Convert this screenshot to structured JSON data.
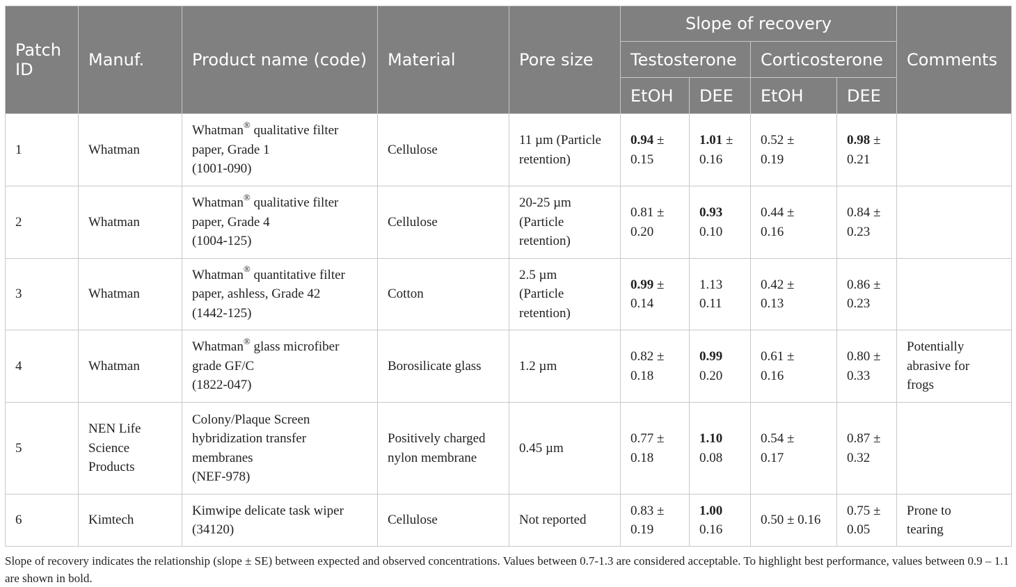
{
  "header": {
    "patch_id": [
      "Patch",
      "ID"
    ],
    "manuf": "Manuf.",
    "product": "Product name (code)",
    "material": "Material",
    "pore_size": "Pore size",
    "slope": "Slope of recovery",
    "testosterone": "Testosterone",
    "corticosterone": "Corticosterone",
    "etoh": "EtOH",
    "dee": "DEE",
    "comments": "Comments"
  },
  "rows": [
    {
      "id": "1",
      "manuf": [
        "Whatman"
      ],
      "product": {
        "brand": "Whatman",
        "sup": "®",
        "rest": " qualitative filter",
        "lines": [
          "paper, Grade 1",
          "(1001-090)"
        ]
      },
      "material": [
        "Cellulose"
      ],
      "pore": [
        "11 µm (Particle",
        "retention)"
      ],
      "t_etoh": {
        "v": "0.94",
        "pm": " ±",
        "se": "0.15",
        "bold": true
      },
      "t_dee": {
        "v": "1.01",
        "pm": " ±",
        "se": "0.16",
        "bold": true
      },
      "c_etoh": {
        "v": "0.52",
        "pm": " ±",
        "se": "0.19",
        "bold": false
      },
      "c_dee": {
        "v": "0.98",
        "pm": " ±",
        "se": "0.21",
        "bold": true
      },
      "comments": []
    },
    {
      "id": "2",
      "manuf": [
        "Whatman"
      ],
      "product": {
        "brand": "Whatman",
        "sup": "®",
        "rest": " qualitative filter",
        "lines": [
          "paper, Grade 4",
          "(1004-125)"
        ]
      },
      "material": [
        "Cellulose"
      ],
      "pore": [
        "20-25 µm",
        "(Particle",
        "retention)"
      ],
      "t_etoh": {
        "v": "0.81",
        "pm": " ±",
        "se": "0.20",
        "bold": false
      },
      "t_dee": {
        "v": "0.93",
        "pm": "",
        "se": "0.10",
        "bold": true
      },
      "c_etoh": {
        "v": "0.44",
        "pm": " ±",
        "se": "0.16",
        "bold": false
      },
      "c_dee": {
        "v": "0.84",
        "pm": " ±",
        "se": "0.23",
        "bold": false
      },
      "comments": []
    },
    {
      "id": "3",
      "manuf": [
        "Whatman"
      ],
      "product": {
        "brand": "Whatman",
        "sup": "®",
        "rest": " quantitative filter",
        "lines": [
          "paper, ashless, Grade 42",
          "(1442-125)"
        ]
      },
      "material": [
        "Cotton"
      ],
      "pore": [
        "2.5 µm",
        "(Particle",
        "retention)"
      ],
      "t_etoh": {
        "v": "0.99",
        "pm": " ±",
        "se": "0.14",
        "bold": true
      },
      "t_dee": {
        "v": "1.13",
        "pm": "",
        "se": "0.11",
        "bold": false
      },
      "c_etoh": {
        "v": "0.42",
        "pm": " ±",
        "se": "0.13",
        "bold": false
      },
      "c_dee": {
        "v": "0.86",
        "pm": " ±",
        "se": "0.23",
        "bold": false
      },
      "comments": []
    },
    {
      "id": "4",
      "manuf": [
        "Whatman"
      ],
      "product": {
        "brand": "Whatman",
        "sup": "®",
        "rest": " glass microfiber",
        "lines": [
          "grade GF/C",
          "(1822-047)"
        ]
      },
      "material": [
        "Borosilicate glass"
      ],
      "pore": [
        "1.2 µm"
      ],
      "t_etoh": {
        "v": "0.82",
        "pm": " ±",
        "se": "0.18",
        "bold": false
      },
      "t_dee": {
        "v": "0.99",
        "pm": "",
        "se": "0.20",
        "bold": true
      },
      "c_etoh": {
        "v": "0.61",
        "pm": " ±",
        "se": "0.16",
        "bold": false
      },
      "c_dee": {
        "v": "0.80",
        "pm": " ±",
        "se": "0.33",
        "bold": false
      },
      "comments": [
        "Potentially",
        "abrasive for",
        "frogs"
      ]
    },
    {
      "id": "5",
      "manuf": [
        "NEN Life",
        "Science",
        "Products"
      ],
      "product": {
        "brand": "",
        "sup": "",
        "rest": "Colony/Plaque Screen",
        "lines": [
          "hybridization transfer",
          "membranes",
          "(NEF-978)"
        ]
      },
      "material": [
        "Positively charged",
        "nylon membrane"
      ],
      "pore": [
        "0.45 µm"
      ],
      "t_etoh": {
        "v": "0.77",
        "pm": " ±",
        "se": "0.18",
        "bold": false
      },
      "t_dee": {
        "v": "1.10",
        "pm": "",
        "se": "0.08",
        "bold": true
      },
      "c_etoh": {
        "v": "0.54",
        "pm": " ±",
        "se": "0.17",
        "bold": false
      },
      "c_dee": {
        "v": "0.87",
        "pm": " ±",
        "se": "0.32",
        "bold": false
      },
      "comments": []
    },
    {
      "id": "6",
      "manuf": [
        "Kimtech"
      ],
      "product": {
        "brand": "",
        "sup": "",
        "rest": "Kimwipe delicate task wiper",
        "lines": [
          "(34120)"
        ]
      },
      "material": [
        "Cellulose"
      ],
      "pore": [
        "Not reported"
      ],
      "t_etoh": {
        "v": "0.83",
        "pm": " ±",
        "se": "0.19",
        "bold": false
      },
      "t_dee": {
        "v": "1.00",
        "pm": "",
        "se": "0.16",
        "bold": true
      },
      "c_etoh": {
        "v": "0.50 ± 0.16",
        "pm": "",
        "se": "",
        "bold": false
      },
      "c_dee": {
        "v": "0.75",
        "pm": " ±",
        "se": "0.05",
        "bold": false
      },
      "comments": [
        "Prone to",
        "tearing"
      ]
    }
  ],
  "footnote": "Slope of recovery indicates the relationship (slope ± SE) between expected and observed concentrations. Values between 0.7-1.3 are considered acceptable. To highlight best performance, values between 0.9 – 1.1 are shown in bold."
}
